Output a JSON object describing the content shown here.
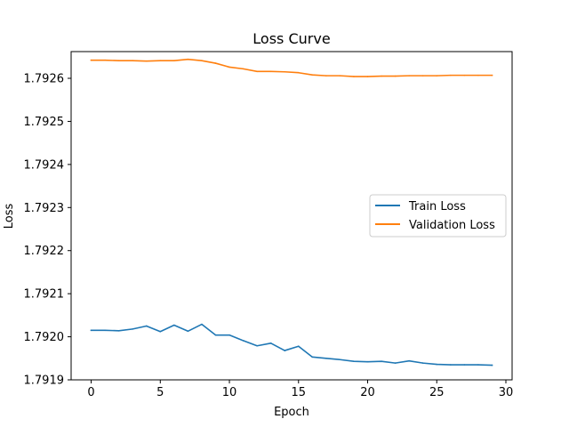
{
  "chart_data": {
    "type": "line",
    "title": "Loss Curve",
    "xlabel": "Epoch",
    "ylabel": "Loss",
    "xlim": [
      -1.45,
      30.45
    ],
    "ylim": [
      1.7919,
      1.792662
    ],
    "xticks": [
      0,
      5,
      10,
      15,
      20,
      25,
      30
    ],
    "xtick_labels": [
      "0",
      "5",
      "10",
      "15",
      "20",
      "25",
      "30"
    ],
    "yticks": [
      1.7919,
      1.792,
      1.7921,
      1.7922,
      1.7923,
      1.7924,
      1.7925,
      1.7926
    ],
    "ytick_labels": [
      "1.7919",
      "1.7920",
      "1.7921",
      "1.7922",
      "1.7923",
      "1.7924",
      "1.7925",
      "1.7926"
    ],
    "grid": false,
    "legend_position": "center-right",
    "x": [
      0,
      1,
      2,
      3,
      4,
      5,
      6,
      7,
      8,
      9,
      10,
      11,
      12,
      13,
      14,
      15,
      16,
      17,
      18,
      19,
      20,
      21,
      22,
      23,
      24,
      25,
      26,
      27,
      28,
      29
    ],
    "series": [
      {
        "name": "Train Loss",
        "color": "#1f77b4",
        "values": [
          1.792015,
          1.792015,
          1.792014,
          1.792018,
          1.792025,
          1.792012,
          1.792027,
          1.792013,
          1.792029,
          1.792004,
          1.792004,
          1.791991,
          1.791979,
          1.791985,
          1.791968,
          1.791978,
          1.791953,
          1.79195,
          1.791947,
          1.791943,
          1.791942,
          1.791943,
          1.791939,
          1.791944,
          1.791939,
          1.791936,
          1.791935,
          1.791935,
          1.791935,
          1.791934
        ]
      },
      {
        "name": "Validation Loss",
        "color": "#ff7f0e",
        "values": [
          1.792642,
          1.792642,
          1.792641,
          1.792641,
          1.79264,
          1.792641,
          1.792641,
          1.792644,
          1.792641,
          1.792635,
          1.792626,
          1.792622,
          1.792616,
          1.792616,
          1.792615,
          1.792613,
          1.792608,
          1.792606,
          1.792606,
          1.792604,
          1.792604,
          1.792605,
          1.792605,
          1.792606,
          1.792606,
          1.792606,
          1.792607,
          1.792607,
          1.792607,
          1.792607
        ]
      }
    ]
  }
}
